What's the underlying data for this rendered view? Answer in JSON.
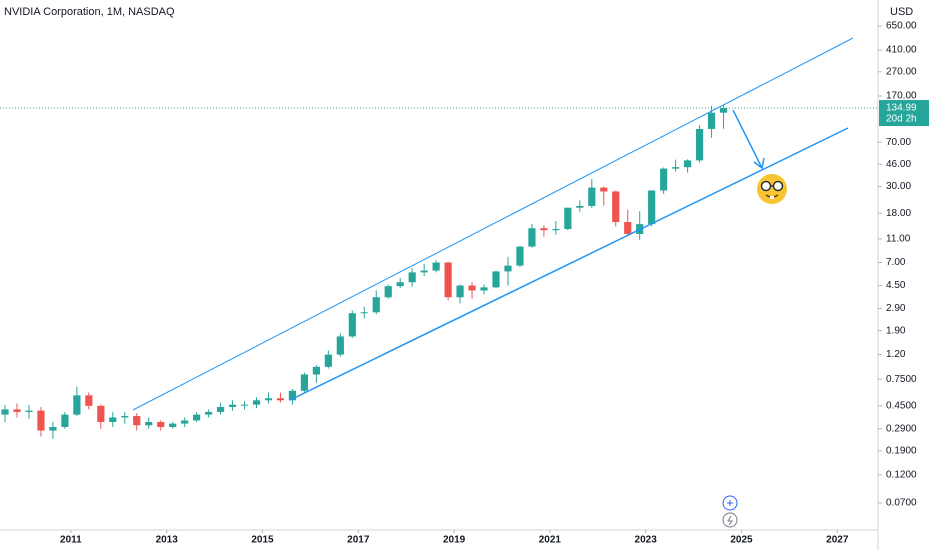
{
  "chart_data": {
    "type": "candlestick",
    "title": "NVIDIA Corporation, 1M, NASDAQ",
    "currency": "USD",
    "log_scale": true,
    "up_color": "#26a69a",
    "down_color": "#ef5350",
    "last_price": 134.99,
    "last_price_label": "134.99",
    "countdown": "20d 2h",
    "xlim": [
      2009.52,
      2027.85
    ],
    "xticks": [
      2011,
      2013,
      2015,
      2017,
      2019,
      2021,
      2023,
      2025,
      2027
    ],
    "ylim": [
      0.0417,
      1069
    ],
    "yticks": [
      {
        "value": 650,
        "label": "650.00"
      },
      {
        "value": 410,
        "label": "410.00"
      },
      {
        "value": 270,
        "label": "270.00"
      },
      {
        "value": 170,
        "label": "170.00"
      },
      {
        "value": 70,
        "label": "70.00"
      },
      {
        "value": 46,
        "label": "46.00"
      },
      {
        "value": 30,
        "label": "30.00"
      },
      {
        "value": 18,
        "label": "18.00"
      },
      {
        "value": 11,
        "label": "11.00"
      },
      {
        "value": 7,
        "label": "7.00"
      },
      {
        "value": 4.5,
        "label": "4.50"
      },
      {
        "value": 2.9,
        "label": "2.90"
      },
      {
        "value": 1.9,
        "label": "1.90"
      },
      {
        "value": 1.2,
        "label": "1.20"
      },
      {
        "value": 0.75,
        "label": "0.7500"
      },
      {
        "value": 0.45,
        "label": "0.4500"
      },
      {
        "value": 0.29,
        "label": "0.2900"
      },
      {
        "value": 0.19,
        "label": "0.1900"
      },
      {
        "value": 0.12,
        "label": "0.1200"
      },
      {
        "value": 0.07,
        "label": "0.0700"
      }
    ],
    "x": [
      2009.625,
      2009.875,
      2010.125,
      2010.375,
      2010.625,
      2010.875,
      2011.125,
      2011.375,
      2011.625,
      2011.875,
      2012.125,
      2012.375,
      2012.625,
      2012.875,
      2013.125,
      2013.375,
      2013.625,
      2013.875,
      2014.125,
      2014.375,
      2014.625,
      2014.875,
      2015.125,
      2015.375,
      2015.625,
      2015.875,
      2016.125,
      2016.375,
      2016.625,
      2016.875,
      2017.125,
      2017.375,
      2017.625,
      2017.875,
      2018.125,
      2018.375,
      2018.625,
      2018.875,
      2019.125,
      2019.375,
      2019.625,
      2019.875,
      2020.125,
      2020.375,
      2020.625,
      2020.875,
      2021.125,
      2021.375,
      2021.625,
      2021.875,
      2022.125,
      2022.375,
      2022.625,
      2022.875,
      2023.125,
      2023.375,
      2023.625,
      2023.875,
      2024.125,
      2024.375,
      2024.625
    ],
    "open": [
      0.38,
      0.42,
      0.4,
      0.41,
      0.28,
      0.3,
      0.38,
      0.55,
      0.45,
      0.33,
      0.36,
      0.37,
      0.31,
      0.33,
      0.3,
      0.32,
      0.34,
      0.38,
      0.4,
      0.44,
      0.46,
      0.46,
      0.5,
      0.52,
      0.5,
      0.6,
      0.82,
      0.95,
      1.2,
      1.7,
      2.65,
      2.7,
      3.6,
      4.45,
      4.8,
      5.8,
      6.0,
      7.0,
      3.6,
      4.5,
      4.1,
      4.35,
      5.9,
      6.6,
      9.5,
      13.5,
      13.0,
      13.3,
      20.0,
      20.7,
      29.4,
      27.3,
      15.2,
      12.1,
      14.6,
      27.8,
      42.3,
      43.5,
      49.5,
      90.4,
      123.5
    ],
    "high": [
      0.46,
      0.47,
      0.46,
      0.44,
      0.33,
      0.4,
      0.65,
      0.58,
      0.46,
      0.4,
      0.4,
      0.39,
      0.36,
      0.34,
      0.33,
      0.36,
      0.4,
      0.42,
      0.48,
      0.5,
      0.49,
      0.53,
      0.58,
      0.58,
      0.62,
      0.85,
      0.98,
      1.3,
      1.8,
      2.8,
      3.0,
      4.1,
      4.6,
      5.2,
      6.3,
      6.8,
      7.3,
      7.1,
      4.6,
      4.8,
      4.6,
      6.0,
      7.8,
      9.6,
      14.7,
      14.3,
      15.5,
      20.1,
      23.0,
      34.6,
      30.0,
      27.8,
      19.2,
      18.7,
      28.0,
      43.2,
      50.2,
      50.5,
      97.4,
      140.8,
      144.4
    ],
    "low": [
      0.33,
      0.36,
      0.35,
      0.25,
      0.24,
      0.29,
      0.37,
      0.42,
      0.29,
      0.3,
      0.32,
      0.28,
      0.29,
      0.28,
      0.29,
      0.3,
      0.33,
      0.36,
      0.38,
      0.41,
      0.42,
      0.43,
      0.47,
      0.48,
      0.46,
      0.58,
      0.7,
      0.92,
      1.15,
      1.65,
      2.4,
      2.6,
      3.5,
      4.3,
      4.4,
      5.4,
      5.8,
      3.4,
      3.2,
      3.5,
      3.8,
      4.3,
      4.5,
      6.4,
      9.3,
      11.5,
      11.9,
      13.0,
      18.5,
      19.8,
      20.8,
      14.0,
      11.8,
      10.8,
      14.0,
      26.0,
      40.0,
      39.2,
      47.3,
      76.3,
      90.7
    ],
    "close": [
      0.42,
      0.4,
      0.41,
      0.28,
      0.3,
      0.38,
      0.55,
      0.45,
      0.33,
      0.36,
      0.37,
      0.31,
      0.33,
      0.3,
      0.32,
      0.34,
      0.38,
      0.4,
      0.44,
      0.46,
      0.46,
      0.5,
      0.52,
      0.5,
      0.6,
      0.82,
      0.95,
      1.2,
      1.7,
      2.65,
      2.7,
      3.6,
      4.45,
      4.8,
      5.8,
      6.0,
      7.0,
      3.6,
      4.5,
      4.1,
      4.35,
      5.9,
      6.6,
      9.5,
      13.5,
      13.0,
      13.3,
      20.0,
      20.7,
      29.4,
      27.3,
      15.2,
      12.1,
      14.6,
      27.8,
      42.3,
      43.5,
      49.5,
      90.4,
      123.5,
      134.99
    ]
  }
}
